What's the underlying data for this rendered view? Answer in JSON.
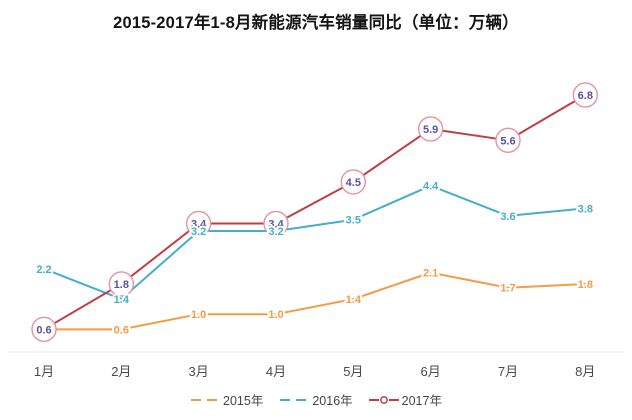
{
  "title": "2015-2017年1-8月新能源汽车销量同比（单位：万辆）",
  "chart_data": {
    "type": "line",
    "categories": [
      "1月",
      "2月",
      "3月",
      "4月",
      "5月",
      "6月",
      "7月",
      "8月"
    ],
    "series": [
      {
        "name": "2015年",
        "values": [
          0.6,
          0.6,
          1.0,
          1.0,
          1.4,
          2.1,
          1.7,
          1.8
        ],
        "labels": [
          "0.6",
          "0.6",
          "1.0",
          "1.0",
          "1.4",
          "2.1",
          "1.7",
          "1.8"
        ],
        "color": "#f59b44",
        "label_color": "#f59b44",
        "marker": "none",
        "legend_icon": "dashes"
      },
      {
        "name": "2016年",
        "values": [
          2.2,
          1.4,
          3.2,
          3.2,
          3.5,
          4.4,
          3.6,
          3.8
        ],
        "labels": [
          "2.2",
          "1.4",
          "3.2",
          "3.2",
          "3.5",
          "4.4",
          "3.6",
          "3.8"
        ],
        "color": "#45aecb",
        "label_color": "#45aecb",
        "marker": "none",
        "legend_icon": "dashes"
      },
      {
        "name": "2017年",
        "values": [
          0.6,
          1.8,
          3.4,
          3.4,
          4.5,
          5.9,
          5.6,
          6.8
        ],
        "labels": [
          "0.6",
          "1.8",
          "3.4",
          "3.4",
          "4.5",
          "5.9",
          "5.6",
          "6.8"
        ],
        "color": "#c23c45",
        "label_color": "#5a50a0",
        "marker": "circle",
        "marker_fill": "#ffffff",
        "marker_stroke": "#e295a0",
        "legend_icon": "line-circle"
      }
    ],
    "ylim": [
      0,
      7.2
    ],
    "xlabel": "",
    "ylabel": "",
    "grid": false,
    "legend_position": "bottom",
    "axis_line_color": "#e4e4e6",
    "axis_label_color": "#4a4a4a",
    "legend_text_color": "#454545",
    "background": "#ffffff"
  }
}
